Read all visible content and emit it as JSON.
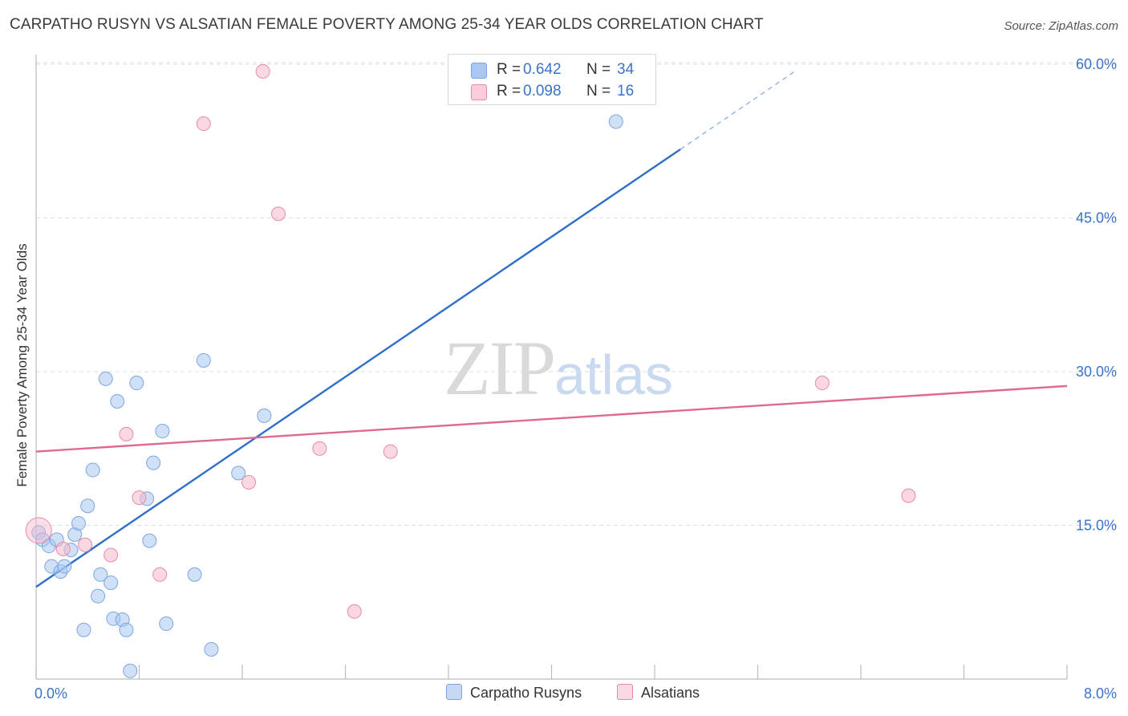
{
  "header": {
    "title": "CARPATHO RUSYN VS ALSATIAN FEMALE POVERTY AMONG 25-34 YEAR OLDS CORRELATION CHART",
    "source": "Source: ZipAtlas.com"
  },
  "watermark": {
    "zip": "ZIP",
    "atlas": "atlas"
  },
  "stats": [
    {
      "r_label": "R =",
      "r_value": "0.642",
      "n_label": "N =",
      "n_value": "34",
      "color": "#a9c7f0"
    },
    {
      "r_label": "R =",
      "r_value": "0.098",
      "n_label": "N =",
      "n_value": "16",
      "color": "#f6b8cb"
    }
  ],
  "legend": [
    {
      "label": "Carpatho Rusyns",
      "color": "#a9c7f0"
    },
    {
      "label": "Alsatians",
      "color": "#f6b8cb"
    }
  ],
  "chart_data": {
    "type": "scatter",
    "title": "CARPATHO RUSYN VS ALSATIAN FEMALE POVERTY AMONG 25-34 YEAR OLDS CORRELATION CHART",
    "xlabel": "",
    "ylabel": "Female Poverty Among 25-34 Year Olds",
    "xlim": [
      0,
      8
    ],
    "ylim": [
      0,
      60
    ],
    "x_tick_labels": [
      "0.0%",
      "8.0%"
    ],
    "y_ticks": [
      15,
      30,
      45,
      60
    ],
    "y_tick_labels": [
      "15.0%",
      "30.0%",
      "45.0%",
      "60.0%"
    ],
    "series": [
      {
        "name": "Carpatho Rusyns",
        "color": "#a9c7f0",
        "stroke": "#7ba6e0",
        "line_color": "#2e6fcc",
        "trend": {
          "x0": 0,
          "y0": 9.0,
          "x1": 5.0,
          "y1": 51.7,
          "dash_to_x": 5.9,
          "dash_to_y": 59.4
        },
        "points": [
          [
            0.02,
            14.3
          ],
          [
            0.05,
            13.6
          ],
          [
            0.1,
            13.0
          ],
          [
            0.12,
            11.0
          ],
          [
            0.16,
            13.6
          ],
          [
            0.19,
            10.5
          ],
          [
            0.22,
            11.0
          ],
          [
            0.27,
            12.6
          ],
          [
            0.3,
            14.1
          ],
          [
            0.33,
            15.2
          ],
          [
            0.37,
            4.8
          ],
          [
            0.4,
            16.9
          ],
          [
            0.44,
            20.4
          ],
          [
            0.48,
            8.1
          ],
          [
            0.5,
            10.2
          ],
          [
            0.54,
            29.3
          ],
          [
            0.58,
            9.4
          ],
          [
            0.6,
            5.9
          ],
          [
            0.63,
            27.1
          ],
          [
            0.67,
            5.8
          ],
          [
            0.7,
            4.8
          ],
          [
            0.73,
            0.8
          ],
          [
            0.78,
            28.9
          ],
          [
            0.86,
            17.6
          ],
          [
            0.88,
            13.5
          ],
          [
            0.91,
            21.1
          ],
          [
            0.98,
            24.2
          ],
          [
            1.01,
            5.4
          ],
          [
            1.23,
            10.2
          ],
          [
            1.3,
            31.1
          ],
          [
            1.36,
            2.9
          ],
          [
            1.57,
            20.1
          ],
          [
            1.77,
            25.7
          ],
          [
            4.5,
            54.4
          ]
        ]
      },
      {
        "name": "Alsatians",
        "color": "#f6b8cb",
        "stroke": "#e98aa7",
        "line_color": "#e0698f",
        "trend": {
          "x0": 0,
          "y0": 22.2,
          "x1": 8.0,
          "y1": 28.6
        },
        "points": [
          [
            0.02,
            14.5
          ],
          [
            0.21,
            12.7
          ],
          [
            0.38,
            13.1
          ],
          [
            0.58,
            12.1
          ],
          [
            0.7,
            23.9
          ],
          [
            0.8,
            17.7
          ],
          [
            0.96,
            10.2
          ],
          [
            1.3,
            54.2
          ],
          [
            1.65,
            19.2
          ],
          [
            1.76,
            59.3
          ],
          [
            1.88,
            45.4
          ],
          [
            2.2,
            22.5
          ],
          [
            2.47,
            6.6
          ],
          [
            2.75,
            22.2
          ],
          [
            6.1,
            28.9
          ],
          [
            6.77,
            17.9
          ]
        ]
      }
    ]
  }
}
